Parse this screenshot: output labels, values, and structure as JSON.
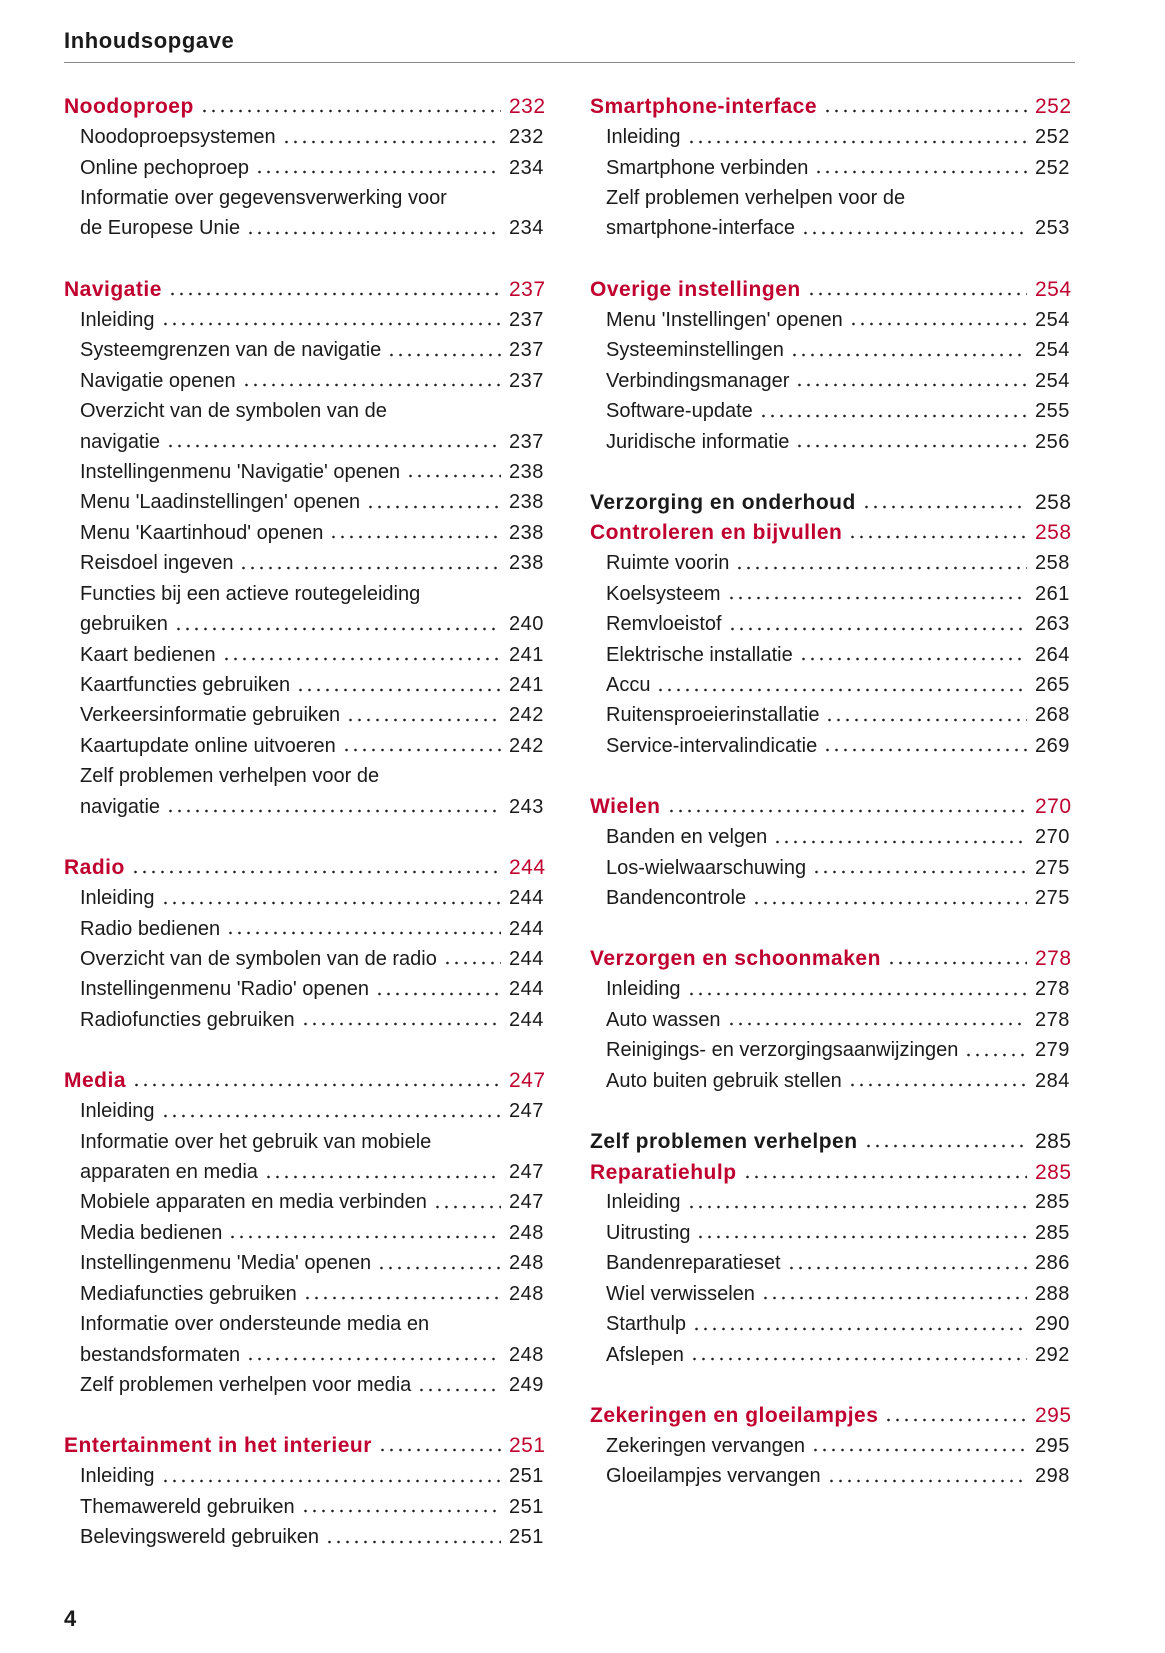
{
  "header": {
    "title": "Inhoudsopgave"
  },
  "page_number": "4",
  "heading_color": "#c0002e",
  "chapter_color": "#1a1a1a",
  "columns": [
    {
      "groups": [
        {
          "heading": {
            "text": "Noodoproep",
            "page": 232
          },
          "items": [
            {
              "lines": [
                "Noodoproepsystemen"
              ],
              "page": 232
            },
            {
              "lines": [
                "Online pechoproep"
              ],
              "page": 234
            },
            {
              "lines": [
                "Informatie over gegevensverwerking voor",
                "de Europese Unie"
              ],
              "page": 234
            }
          ]
        },
        {
          "heading": {
            "text": "Navigatie",
            "page": 237
          },
          "items": [
            {
              "lines": [
                "Inleiding"
              ],
              "page": 237
            },
            {
              "lines": [
                "Systeemgrenzen van de navigatie"
              ],
              "page": 237
            },
            {
              "lines": [
                "Navigatie openen"
              ],
              "page": 237
            },
            {
              "lines": [
                "Overzicht van de symbolen van de",
                "navigatie"
              ],
              "page": 237
            },
            {
              "lines": [
                "Instellingenmenu 'Navigatie' openen"
              ],
              "page": 238
            },
            {
              "lines": [
                "Menu 'Laadinstellingen' openen"
              ],
              "page": 238
            },
            {
              "lines": [
                "Menu 'Kaartinhoud' openen"
              ],
              "page": 238
            },
            {
              "lines": [
                "Reisdoel ingeven"
              ],
              "page": 238
            },
            {
              "lines": [
                "Functies bij een actieve routegeleiding",
                "gebruiken"
              ],
              "page": 240
            },
            {
              "lines": [
                "Kaart bedienen"
              ],
              "page": 241
            },
            {
              "lines": [
                "Kaartfuncties gebruiken"
              ],
              "page": 241
            },
            {
              "lines": [
                "Verkeersinformatie gebruiken"
              ],
              "page": 242
            },
            {
              "lines": [
                "Kaartupdate online uitvoeren"
              ],
              "page": 242
            },
            {
              "lines": [
                "Zelf problemen verhelpen voor de",
                "navigatie"
              ],
              "page": 243
            }
          ]
        },
        {
          "heading": {
            "text": "Radio",
            "page": 244
          },
          "items": [
            {
              "lines": [
                "Inleiding"
              ],
              "page": 244
            },
            {
              "lines": [
                "Radio bedienen"
              ],
              "page": 244
            },
            {
              "lines": [
                "Overzicht van de symbolen van de radio"
              ],
              "page": 244
            },
            {
              "lines": [
                "Instellingenmenu 'Radio' openen"
              ],
              "page": 244
            },
            {
              "lines": [
                "Radiofuncties gebruiken"
              ],
              "page": 244
            }
          ]
        },
        {
          "heading": {
            "text": "Media",
            "page": 247
          },
          "items": [
            {
              "lines": [
                "Inleiding"
              ],
              "page": 247
            },
            {
              "lines": [
                "Informatie over het gebruik van mobiele",
                "apparaten en media"
              ],
              "page": 247
            },
            {
              "lines": [
                "Mobiele apparaten en media verbinden"
              ],
              "page": 247
            },
            {
              "lines": [
                "Media bedienen"
              ],
              "page": 248
            },
            {
              "lines": [
                "Instellingenmenu 'Media' openen"
              ],
              "page": 248
            },
            {
              "lines": [
                "Mediafuncties gebruiken"
              ],
              "page": 248
            },
            {
              "lines": [
                "Informatie over ondersteunde media en",
                "bestandsformaten"
              ],
              "page": 248
            },
            {
              "lines": [
                "Zelf problemen verhelpen voor media"
              ],
              "page": 249
            }
          ]
        },
        {
          "heading": {
            "text": "Entertainment in het interieur",
            "page": 251
          },
          "items": [
            {
              "lines": [
                "Inleiding"
              ],
              "page": 251
            },
            {
              "lines": [
                "Themawereld gebruiken"
              ],
              "page": 251
            },
            {
              "lines": [
                "Belevingswereld gebruiken"
              ],
              "page": 251
            }
          ]
        }
      ]
    },
    {
      "groups": [
        {
          "heading": {
            "text": "Smartphone-interface",
            "page": 252
          },
          "items": [
            {
              "lines": [
                "Inleiding"
              ],
              "page": 252
            },
            {
              "lines": [
                "Smartphone verbinden"
              ],
              "page": 252
            },
            {
              "lines": [
                "Zelf problemen verhelpen voor de",
                "smartphone-interface"
              ],
              "page": 253
            }
          ]
        },
        {
          "heading": {
            "text": "Overige instellingen",
            "page": 254
          },
          "items": [
            {
              "lines": [
                "Menu 'Instellingen' openen"
              ],
              "page": 254
            },
            {
              "lines": [
                "Systeeminstellingen"
              ],
              "page": 254
            },
            {
              "lines": [
                "Verbindingsmanager"
              ],
              "page": 254
            },
            {
              "lines": [
                "Software-update"
              ],
              "page": 255
            },
            {
              "lines": [
                "Juridische informatie"
              ],
              "page": 256
            }
          ]
        },
        {
          "chapter": {
            "text": "Verzorging en onderhoud",
            "page": 258
          },
          "heading": {
            "text": "Controleren en bijvullen",
            "page": 258
          },
          "items": [
            {
              "lines": [
                "Ruimte voorin"
              ],
              "page": 258
            },
            {
              "lines": [
                "Koelsysteem"
              ],
              "page": 261
            },
            {
              "lines": [
                "Remvloeistof"
              ],
              "page": 263
            },
            {
              "lines": [
                "Elektrische installatie"
              ],
              "page": 264
            },
            {
              "lines": [
                "Accu"
              ],
              "page": 265
            },
            {
              "lines": [
                "Ruitensproeierinstallatie"
              ],
              "page": 268
            },
            {
              "lines": [
                "Service-intervalindicatie"
              ],
              "page": 269
            }
          ]
        },
        {
          "heading": {
            "text": "Wielen",
            "page": 270
          },
          "items": [
            {
              "lines": [
                "Banden en velgen"
              ],
              "page": 270
            },
            {
              "lines": [
                "Los-wielwaarschuwing"
              ],
              "page": 275
            },
            {
              "lines": [
                "Bandencontrole"
              ],
              "page": 275
            }
          ]
        },
        {
          "heading": {
            "text": "Verzorgen en schoonmaken",
            "page": 278
          },
          "items": [
            {
              "lines": [
                "Inleiding"
              ],
              "page": 278
            },
            {
              "lines": [
                "Auto wassen"
              ],
              "page": 278
            },
            {
              "lines": [
                "Reinigings- en verzorgingsaanwijzingen"
              ],
              "page": 279
            },
            {
              "lines": [
                "Auto buiten gebruik stellen"
              ],
              "page": 284
            }
          ]
        },
        {
          "chapter": {
            "text": "Zelf problemen verhelpen",
            "page": 285
          },
          "heading": {
            "text": "Reparatiehulp",
            "page": 285
          },
          "items": [
            {
              "lines": [
                "Inleiding"
              ],
              "page": 285
            },
            {
              "lines": [
                "Uitrusting"
              ],
              "page": 285
            },
            {
              "lines": [
                "Bandenreparatieset"
              ],
              "page": 286
            },
            {
              "lines": [
                "Wiel verwisselen"
              ],
              "page": 288
            },
            {
              "lines": [
                "Starthulp"
              ],
              "page": 290
            },
            {
              "lines": [
                "Afslepen"
              ],
              "page": 292
            }
          ]
        },
        {
          "heading": {
            "text": "Zekeringen en gloeilampjes",
            "page": 295
          },
          "items": [
            {
              "lines": [
                "Zekeringen vervangen"
              ],
              "page": 295
            },
            {
              "lines": [
                "Gloeilampjes vervangen"
              ],
              "page": 298
            }
          ]
        }
      ]
    }
  ]
}
